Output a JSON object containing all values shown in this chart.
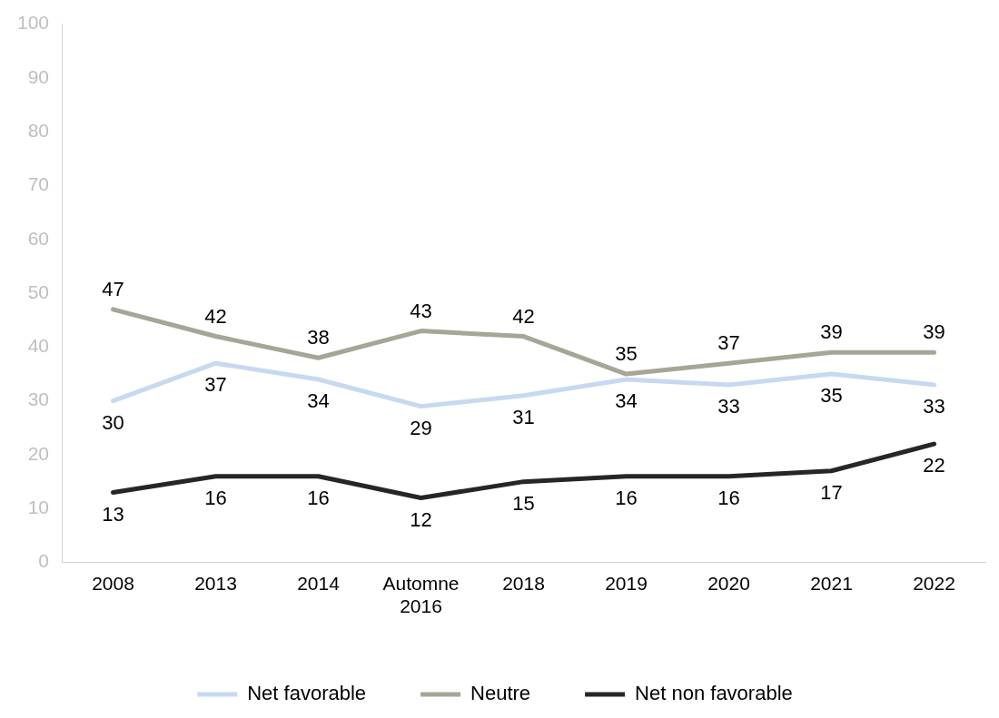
{
  "chart_data": {
    "type": "line",
    "categories": [
      "2008",
      "2013",
      "2014",
      "Automne 2016",
      "2018",
      "2019",
      "2020",
      "2021",
      "2022"
    ],
    "series": [
      {
        "name": "Net favorable",
        "color": "#c6d9f1",
        "values": [
          30,
          37,
          34,
          29,
          31,
          34,
          33,
          35,
          33
        ]
      },
      {
        "name": "Neutre",
        "color": "#a6a697",
        "values": [
          47,
          42,
          38,
          43,
          42,
          35,
          37,
          39,
          39
        ]
      },
      {
        "name": "Net non favorable",
        "color": "#262626",
        "values": [
          13,
          16,
          16,
          12,
          15,
          16,
          16,
          17,
          22
        ]
      }
    ],
    "ylim": [
      0,
      100
    ],
    "yticks": [
      0,
      10,
      20,
      30,
      40,
      50,
      60,
      70,
      80,
      90,
      100
    ],
    "grid": false,
    "legend": "bottom",
    "data_labels": true,
    "marker": "none",
    "line_style": "solid"
  }
}
